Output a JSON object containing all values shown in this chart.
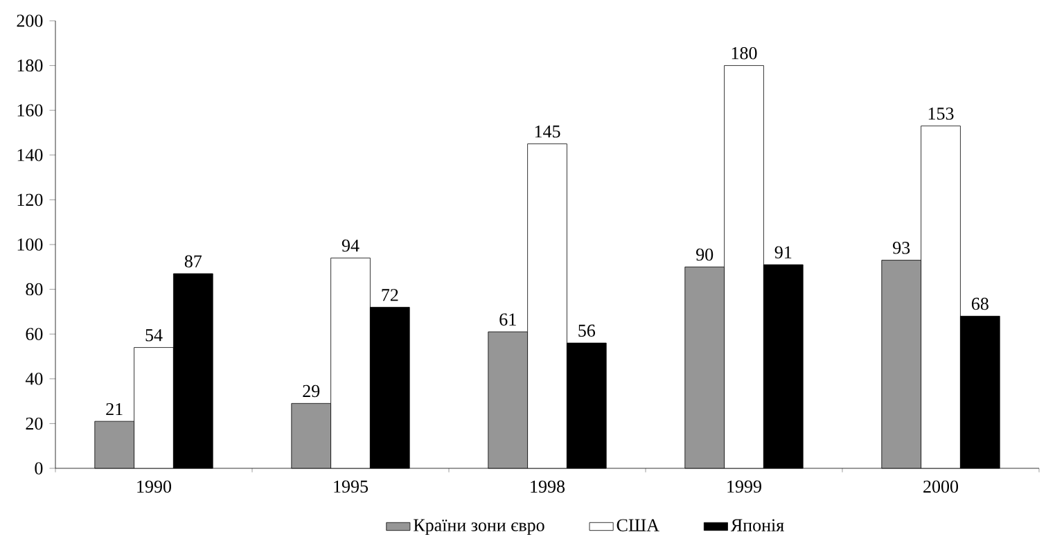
{
  "chart_data": {
    "type": "bar",
    "categories": [
      "1990",
      "1995",
      "1998",
      "1999",
      "2000"
    ],
    "series": [
      {
        "name": "Країни зони євро",
        "color": "#969696",
        "values": [
          21,
          29,
          61,
          90,
          93
        ]
      },
      {
        "name": "США",
        "color": "#ffffff",
        "values": [
          54,
          94,
          145,
          180,
          153
        ]
      },
      {
        "name": "Японія",
        "color": "#000000",
        "values": [
          87,
          72,
          56,
          91,
          68
        ]
      }
    ],
    "ylim": [
      0,
      200
    ],
    "yticks": [
      0,
      20,
      40,
      60,
      80,
      100,
      120,
      140,
      160,
      180,
      200
    ],
    "data_labels": true,
    "legend": "bottom",
    "grid": false
  }
}
